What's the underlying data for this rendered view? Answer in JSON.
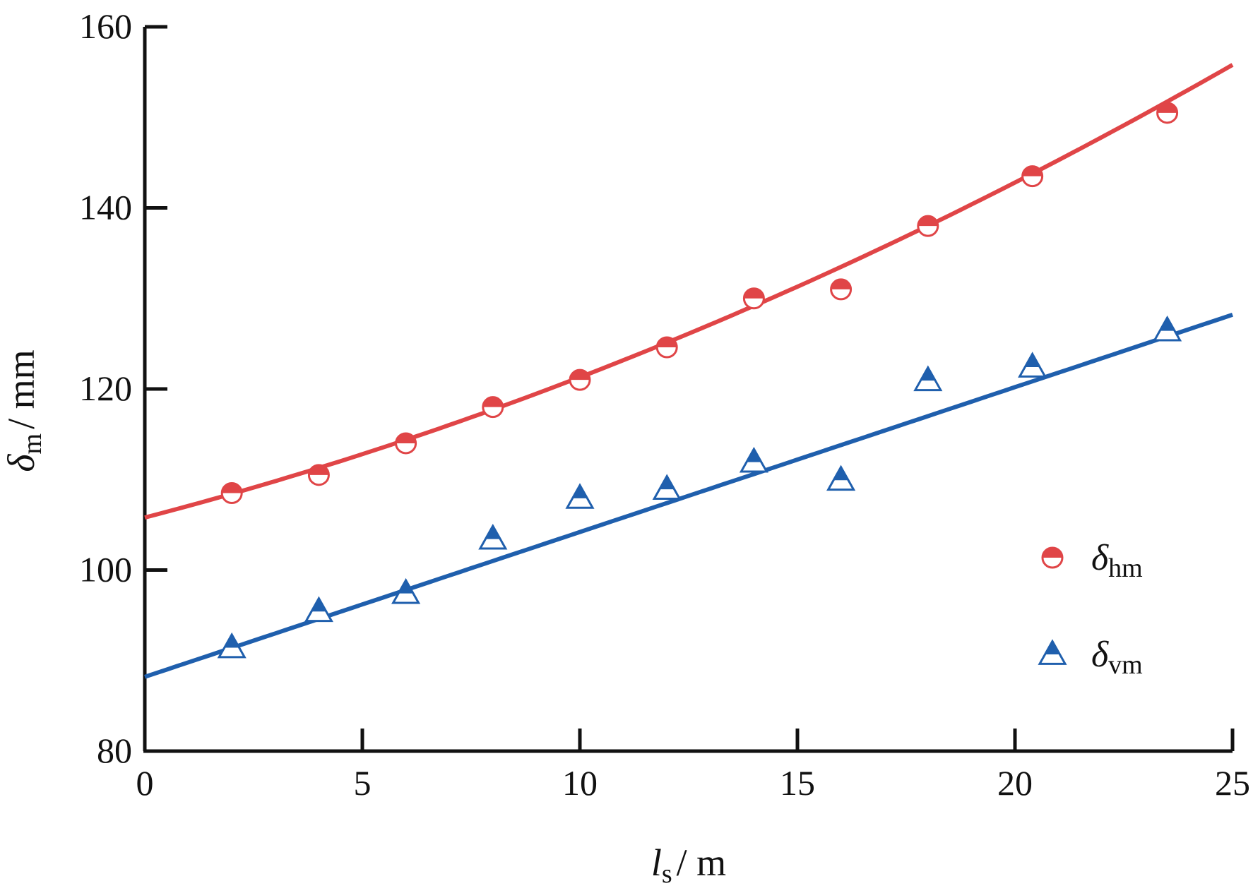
{
  "chart_data": {
    "type": "scatter",
    "xlabel": {
      "main": "l",
      "sub": "s",
      "unit": "/ m"
    },
    "ylabel": {
      "main": "δ",
      "sub": "m",
      "unit": "/ mm"
    },
    "xlim": [
      0,
      25
    ],
    "ylim": [
      80,
      160
    ],
    "xticks": [
      0,
      5,
      10,
      15,
      20,
      25
    ],
    "yticks": [
      80,
      100,
      120,
      140,
      160
    ],
    "grid": false,
    "legend_position": "bottom-right",
    "series": [
      {
        "name": "δ",
        "name_sub": "hm",
        "color": "#e04547",
        "marker": "half-filled-circle",
        "x": [
          2,
          4,
          6,
          8,
          10,
          12,
          14,
          16,
          18,
          20.4,
          23.5
        ],
        "y": [
          108.5,
          110.5,
          114,
          118,
          121,
          124.6,
          130,
          131,
          138,
          143.5,
          150.5
        ],
        "fit": {
          "type": "quadratic",
          "coef": [
            105.8,
            1.25,
            0.03
          ],
          "x_range": [
            0,
            25
          ]
        }
      },
      {
        "name": "δ",
        "name_sub": "vm",
        "color": "#1f5fad",
        "marker": "half-filled-triangle",
        "x": [
          2,
          4,
          6,
          8,
          10,
          12,
          14,
          16,
          18,
          20.4,
          23.5
        ],
        "y": [
          91.5,
          95.5,
          97.5,
          103.5,
          108,
          109,
          112,
          110,
          121,
          122.5,
          126.5
        ],
        "fit": {
          "type": "linear",
          "coef": [
            88.2,
            1.6
          ],
          "x_range": [
            0,
            25
          ]
        }
      }
    ]
  }
}
